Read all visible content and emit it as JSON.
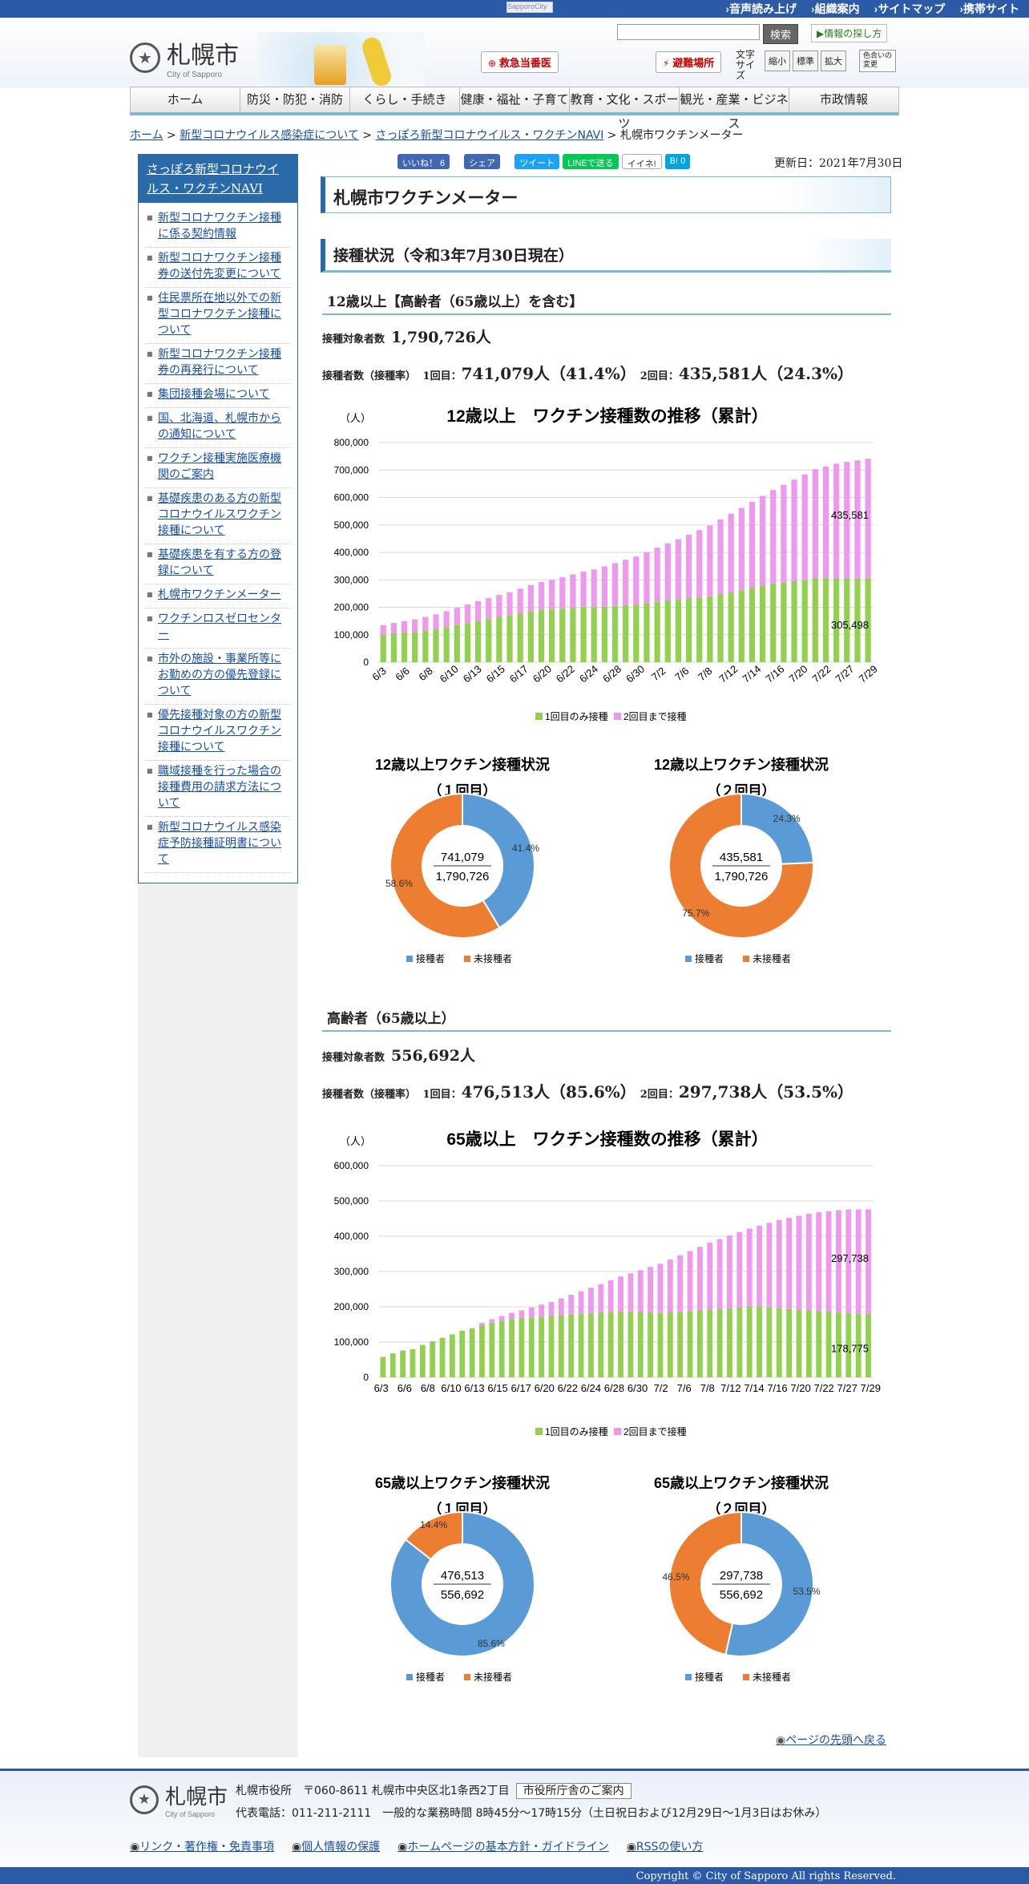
{
  "topbar": {
    "img_alt": "SapporoCity",
    "links": [
      "音声読み上げ",
      "組織案内",
      "サイトマップ",
      "携帯サイト"
    ]
  },
  "header": {
    "logo_name": "札幌市",
    "logo_en": "City of Sapporo",
    "search_button": "検索",
    "howto": "情報の探し方",
    "emergency": "救急当番医",
    "shelter": "避難場所",
    "fontsize_label": "文字サイズ",
    "font_small": "縮小",
    "font_std": "標準",
    "font_large": "拡大",
    "color_change": "色合いの変更"
  },
  "nav": [
    "ホーム",
    "防災・防犯・消防",
    "くらし・手続き",
    "健康・福祉・子育て",
    "教育・文化・スポーツ",
    "観光・産業・ビジネス",
    "市政情報"
  ],
  "breadcrumb": {
    "home": "ホーム",
    "sep": " > ",
    "c1": "新型コロナウイルス感染症について",
    "c2": "さっぽろ新型コロナウイルス・ワクチンNAVI",
    "current": "札幌市ワクチンメーター"
  },
  "sidebar": {
    "title": "さっぽろ新型コロナウイルス・ワクチンNAVI",
    "items": [
      "新型コロナワクチン接種に係る契約情報",
      "新型コロナワクチン接種券の送付先変更について",
      "住民票所在地以外での新型コロナワクチン接種について",
      "新型コロナワクチン接種券の再発行について",
      "集団接種会場について",
      "国、北海道、札幌市からの通知について",
      "ワクチン接種実施医療機関のご案内",
      "基礎疾患のある方の新型コロナウイルスワクチン接種について",
      "基礎疾患を有する方の登録について",
      "札幌市ワクチンメーター",
      "ワクチンロスゼロセンター",
      "市外の施設・事業所等にお勤めの方の優先登録について",
      "優先接種対象の方の新型コロナウイルスワクチン接種について",
      "職域接種を行った場合の接種費用の請求方法について",
      "新型コロナウイルス感染症予防接種証明書について"
    ]
  },
  "share": {
    "like": "いいね！ 6",
    "share": "シェア",
    "tweet": "ツイート",
    "line": "LINEで送る",
    "iine": "イイネ!",
    "hatena": "B! 0"
  },
  "updated": "更新日：2021年7月30日",
  "page_title": "札幌市ワクチンメーター",
  "section_title": "接種状況（令和3年7月30日現在）",
  "group1": {
    "heading": "12歳以上【高齢者（65歳以上）を含む】",
    "target_label": "接種対象者数",
    "target": "1,790,726人",
    "done_label": "接種者数（接種率）",
    "d1_label": "1回目：",
    "d1": "741,079人（41.4%）",
    "d2_label": "2回目：",
    "d2": "435,581人（24.3%）"
  },
  "group2": {
    "heading": "高齢者（65歳以上）",
    "target_label": "接種対象者数",
    "target": "556,692人",
    "done_label": "接種者数（接種率）",
    "d1_label": "1回目：",
    "d1": "476,513人（85.6%）",
    "d2_label": "2回目：",
    "d2": "297,738人（53.5%）"
  },
  "colors": {
    "first": "#92d050",
    "both": "#ee99ee",
    "done": "#5b9bd5",
    "notdone": "#ed7d31",
    "accent": "#2b6aa8"
  },
  "chart_data": [
    {
      "type": "bar",
      "title": "12歳以上　ワクチン接種数の推移（累計）",
      "ylabel": "（人）",
      "ylim": [
        0,
        800000
      ],
      "yticks": [
        "800,000",
        "700,000",
        "600,000",
        "500,000",
        "400,000",
        "300,000",
        "200,000",
        "100,000",
        "0"
      ],
      "xticklabels": [
        "6/3",
        "6/6",
        "6/8",
        "6/10",
        "6/13",
        "6/15",
        "6/17",
        "6/20",
        "6/22",
        "6/24",
        "6/28",
        "6/30",
        "7/2",
        "7/6",
        "7/8",
        "7/12",
        "7/14",
        "7/16",
        "7/20",
        "7/22",
        "7/27",
        "7/29"
      ],
      "end_labels": {
        "both": "435,581",
        "first": "305,498"
      },
      "series": [
        {
          "name": "1回目のみ接種",
          "values": [
            100000,
            105000,
            108000,
            110000,
            115000,
            120000,
            128000,
            135000,
            142000,
            150000,
            158000,
            165000,
            170000,
            178000,
            185000,
            190000,
            192000,
            195000,
            198000,
            200000,
            200000,
            202000,
            205000,
            208000,
            210000,
            215000,
            220000,
            225000,
            228000,
            232000,
            236000,
            240000,
            248000,
            255000,
            262000,
            270000,
            278000,
            285000,
            290000,
            295000,
            300000,
            305000,
            305000,
            305000,
            305000,
            305000,
            305498
          ]
        },
        {
          "name": "2回目まで接種",
          "values": [
            35000,
            38000,
            42000,
            46000,
            50000,
            54000,
            58000,
            63000,
            68000,
            72000,
            76000,
            80000,
            85000,
            90000,
            96000,
            102000,
            108000,
            115000,
            122000,
            130000,
            138000,
            147000,
            156000,
            165000,
            175000,
            186000,
            197000,
            208000,
            220000,
            232000,
            245000,
            258000,
            272000,
            286000,
            300000,
            314000,
            328000,
            342000,
            356000,
            370000,
            384000,
            398000,
            408000,
            418000,
            425000,
            430000,
            435581
          ]
        }
      ]
    },
    {
      "type": "pie",
      "title": "12歳以上ワクチン接種状況",
      "subtitle": "（１回目）",
      "center_top": "741,079",
      "center_bottom": "1,790,726",
      "categories": [
        "接種者",
        "未接種者"
      ],
      "values": [
        41.4,
        58.6
      ],
      "labels": [
        "41.4%",
        "58.6%"
      ]
    },
    {
      "type": "pie",
      "title": "12歳以上ワクチン接種状況",
      "subtitle": "（２回目）",
      "center_top": "435,581",
      "center_bottom": "1,790,726",
      "categories": [
        "接種者",
        "未接種者"
      ],
      "values": [
        24.3,
        75.7
      ],
      "labels": [
        "24.3%",
        "75.7%"
      ]
    },
    {
      "type": "bar",
      "title": "65歳以上　ワクチン接種数の推移（累計）",
      "ylabel": "（人）",
      "ylim": [
        0,
        600000
      ],
      "yticks": [
        "600,000",
        "500,000",
        "400,000",
        "300,000",
        "200,000",
        "100,000",
        "0"
      ],
      "xticklabels": [
        "6/3",
        "6/6",
        "6/8",
        "6/10",
        "6/13",
        "6/15",
        "6/17",
        "6/20",
        "6/22",
        "6/24",
        "6/28",
        "6/30",
        "7/2",
        "7/6",
        "7/8",
        "7/12",
        "7/14",
        "7/16",
        "7/20",
        "7/22",
        "7/27",
        "7/29"
      ],
      "end_labels": {
        "both": "297,738",
        "first": "178,775"
      },
      "series": [
        {
          "name": "1回目のみ接種",
          "values": [
            58000,
            68000,
            76000,
            80000,
            92000,
            102000,
            112000,
            122000,
            132000,
            138000,
            148000,
            155000,
            160000,
            165000,
            168000,
            170000,
            172000,
            174000,
            176000,
            178000,
            180000,
            182000,
            184000,
            185000,
            186000,
            185000,
            184000,
            183000,
            182000,
            184000,
            186000,
            188000,
            190000,
            192000,
            194000,
            196000,
            198000,
            200000,
            200000,
            198000,
            196000,
            194000,
            192000,
            190000,
            188000,
            186000,
            184000,
            182000,
            180000,
            178775
          ]
        },
        {
          "name": "2回目まで接種",
          "values": [
            0,
            0,
            0,
            0,
            0,
            0,
            0,
            0,
            0,
            2000,
            6000,
            10000,
            14000,
            18000,
            22000,
            28000,
            34000,
            40000,
            48000,
            56000,
            64000,
            72000,
            80000,
            90000,
            100000,
            110000,
            120000,
            130000,
            140000,
            150000,
            160000,
            170000,
            180000,
            190000,
            198000,
            206000,
            214000,
            222000,
            230000,
            240000,
            250000,
            258000,
            266000,
            274000,
            280000,
            285000,
            290000,
            294000,
            296000,
            297738
          ]
        }
      ]
    },
    {
      "type": "pie",
      "title": "65歳以上ワクチン接種状況",
      "subtitle": "（１回目）",
      "center_top": "476,513",
      "center_bottom": "556,692",
      "categories": [
        "接種者",
        "未接種者"
      ],
      "values": [
        85.6,
        14.4
      ],
      "labels": [
        "85.6%",
        "14.4%"
      ]
    },
    {
      "type": "pie",
      "title": "65歳以上ワクチン接種状況",
      "subtitle": "（２回目）",
      "center_top": "297,738",
      "center_bottom": "556,692",
      "categories": [
        "接種者",
        "未接種者"
      ],
      "values": [
        53.5,
        46.5
      ],
      "labels": [
        "53.5%",
        "46.5%"
      ]
    }
  ],
  "totop": "ページの先頭へ戻る",
  "footer": {
    "name": "札幌市",
    "en": "City of Sapporo",
    "address": "札幌市役所　〒060-8611 札幌市中央区北1条西2丁目",
    "guide": "市役所庁舎のご案内",
    "tel": "代表電話：011-211-2111　一般的な業務時間 8時45分～17時15分（土日祝日および12月29日～1月3日はお休み）",
    "links": [
      "リンク・著作権・免責事項",
      "個人情報の保護",
      "ホームページの基本方針・ガイドライン",
      "RSSの使い方"
    ],
    "copyright": "Copyright © City of Sapporo All rights Reserved."
  }
}
